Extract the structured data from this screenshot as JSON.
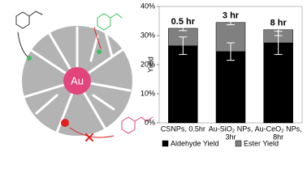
{
  "diagram": {
    "core_label": "Au"
  },
  "chart_data": {
    "type": "stacked-bar",
    "y_label": "Yield",
    "categories": [
      [
        "CSNPs, 0.5hr"
      ],
      [
        "Au-SiO₂ NPs,",
        "3hr"
      ],
      [
        "Au-CeO₂ NPs,",
        "8hr"
      ]
    ],
    "annotations": [
      "0.5 hr",
      "3 hr",
      "8 hr"
    ],
    "series": [
      {
        "name": "Aldehyde Yield",
        "color": "#000000",
        "values": [
          26.5,
          24.5,
          27.5
        ],
        "errors": [
          3,
          3,
          4
        ]
      },
      {
        "name": "Ester Yield",
        "color": "#808080",
        "values": [
          6,
          10,
          4.5
        ],
        "errors": [
          0.8,
          0.8,
          2
        ]
      }
    ],
    "ylim": [
      0,
      40
    ],
    "yticks": [
      {
        "value": 0,
        "label": "0%"
      },
      {
        "value": 10,
        "label": "10%"
      },
      {
        "value": 20,
        "label": "20%"
      },
      {
        "value": 30,
        "label": "30%"
      },
      {
        "value": 40,
        "label": "40%"
      }
    ],
    "legend": "bottom"
  }
}
